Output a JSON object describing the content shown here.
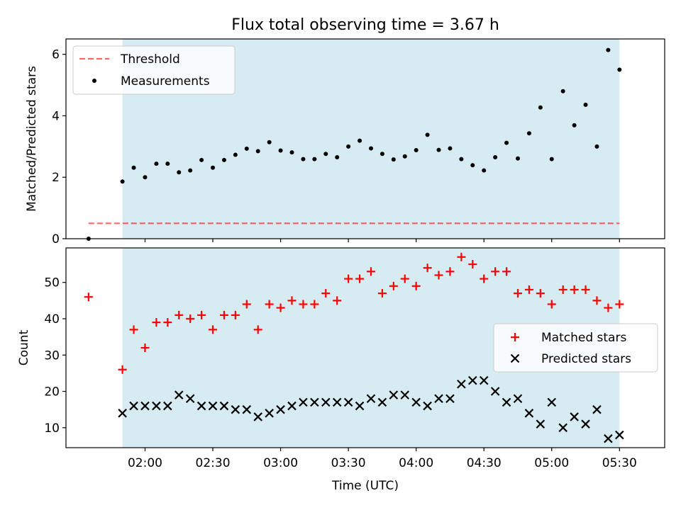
{
  "title": "Flux total observing time = 3.67 h",
  "colors": {
    "observing_band": "#add8e6",
    "threshold": "#ff0000",
    "measurements": "#000000",
    "matched": "#ff0000",
    "predicted": "#000000"
  },
  "chart_data": [
    {
      "type": "scatter",
      "ylabel": "Matched/Predicted stars",
      "ylim": [
        0,
        6.5
      ],
      "yticks": [
        0,
        2,
        4,
        6
      ],
      "xlim": [
        "01:25",
        "05:50"
      ],
      "xticks": [
        "02:00",
        "02:30",
        "03:00",
        "03:30",
        "04:00",
        "04:30",
        "05:00",
        "05:30"
      ],
      "observing_window": [
        "01:50",
        "05:30"
      ],
      "threshold": 0.5,
      "threshold_x": [
        "01:35",
        "05:30"
      ],
      "legend": {
        "position": "upper-left",
        "entries": [
          "Threshold",
          "Measurements"
        ]
      },
      "series": [
        {
          "name": "Measurements",
          "x": [
            "01:35",
            "01:50",
            "01:55",
            "02:00",
            "02:05",
            "02:10",
            "02:15",
            "02:20",
            "02:25",
            "02:30",
            "02:35",
            "02:40",
            "02:45",
            "02:50",
            "02:55",
            "03:00",
            "03:05",
            "03:10",
            "03:15",
            "03:20",
            "03:25",
            "03:30",
            "03:35",
            "03:40",
            "03:45",
            "03:50",
            "03:55",
            "04:00",
            "04:05",
            "04:10",
            "04:15",
            "04:20",
            "04:25",
            "04:30",
            "04:35",
            "04:40",
            "04:45",
            "04:50",
            "04:55",
            "05:00",
            "05:05",
            "05:10",
            "05:15",
            "05:20",
            "05:25",
            "05:30"
          ],
          "y": [
            0.0,
            1.86,
            2.31,
            2.0,
            2.44,
            2.44,
            2.16,
            2.22,
            2.56,
            2.31,
            2.56,
            2.73,
            2.93,
            2.85,
            3.14,
            2.87,
            2.81,
            2.59,
            2.59,
            2.76,
            2.65,
            3.0,
            3.19,
            2.94,
            2.76,
            2.58,
            2.68,
            2.88,
            3.38,
            2.89,
            2.94,
            2.59,
            2.39,
            2.22,
            2.65,
            3.12,
            2.61,
            3.43,
            4.27,
            2.59,
            4.8,
            3.69,
            4.36,
            3.0,
            6.14,
            5.5
          ]
        }
      ]
    },
    {
      "type": "scatter",
      "xlabel": "Time (UTC)",
      "ylabel": "Count",
      "ylim": [
        4.5,
        59.5
      ],
      "yticks": [
        10,
        20,
        30,
        40,
        50
      ],
      "xlim": [
        "01:25",
        "05:50"
      ],
      "xticks": [
        "02:00",
        "02:30",
        "03:00",
        "03:30",
        "04:00",
        "04:30",
        "05:00",
        "05:30"
      ],
      "observing_window": [
        "01:50",
        "05:30"
      ],
      "legend": {
        "position": "center-right",
        "entries": [
          "Matched stars",
          "Predicted stars"
        ]
      },
      "series": [
        {
          "name": "Matched stars",
          "x": [
            "01:35",
            "01:50",
            "01:55",
            "02:00",
            "02:05",
            "02:10",
            "02:15",
            "02:20",
            "02:25",
            "02:30",
            "02:35",
            "02:40",
            "02:45",
            "02:50",
            "02:55",
            "03:00",
            "03:05",
            "03:10",
            "03:15",
            "03:20",
            "03:25",
            "03:30",
            "03:35",
            "03:40",
            "03:45",
            "03:50",
            "03:55",
            "04:00",
            "04:05",
            "04:10",
            "04:15",
            "04:20",
            "04:25",
            "04:30",
            "04:35",
            "04:40",
            "04:45",
            "04:50",
            "04:55",
            "05:00",
            "05:05",
            "05:10",
            "05:15",
            "05:20",
            "05:25",
            "05:30"
          ],
          "y": [
            46,
            26,
            37,
            32,
            39,
            39,
            41,
            40,
            41,
            37,
            41,
            41,
            44,
            37,
            44,
            43,
            45,
            44,
            44,
            47,
            45,
            51,
            51,
            53,
            47,
            49,
            51,
            49,
            54,
            52,
            53,
            57,
            55,
            51,
            53,
            53,
            47,
            48,
            47,
            44,
            48,
            48,
            48,
            45,
            43,
            44
          ]
        },
        {
          "name": "Predicted stars",
          "x": [
            "01:50",
            "01:55",
            "02:00",
            "02:05",
            "02:10",
            "02:15",
            "02:20",
            "02:25",
            "02:30",
            "02:35",
            "02:40",
            "02:45",
            "02:50",
            "02:55",
            "03:00",
            "03:05",
            "03:10",
            "03:15",
            "03:20",
            "03:25",
            "03:30",
            "03:35",
            "03:40",
            "03:45",
            "03:50",
            "03:55",
            "04:00",
            "04:05",
            "04:10",
            "04:15",
            "04:20",
            "04:25",
            "04:30",
            "04:35",
            "04:40",
            "04:45",
            "04:50",
            "04:55",
            "05:00",
            "05:05",
            "05:10",
            "05:15",
            "05:20",
            "05:25",
            "05:30"
          ],
          "y": [
            14,
            16,
            16,
            16,
            16,
            19,
            18,
            16,
            16,
            16,
            15,
            15,
            13,
            14,
            15,
            16,
            17,
            17,
            17,
            17,
            17,
            16,
            18,
            17,
            19,
            19,
            17,
            16,
            18,
            18,
            22,
            23,
            23,
            20,
            17,
            18,
            14,
            11,
            17,
            10,
            13,
            11,
            15,
            7,
            8
          ]
        }
      ]
    }
  ]
}
